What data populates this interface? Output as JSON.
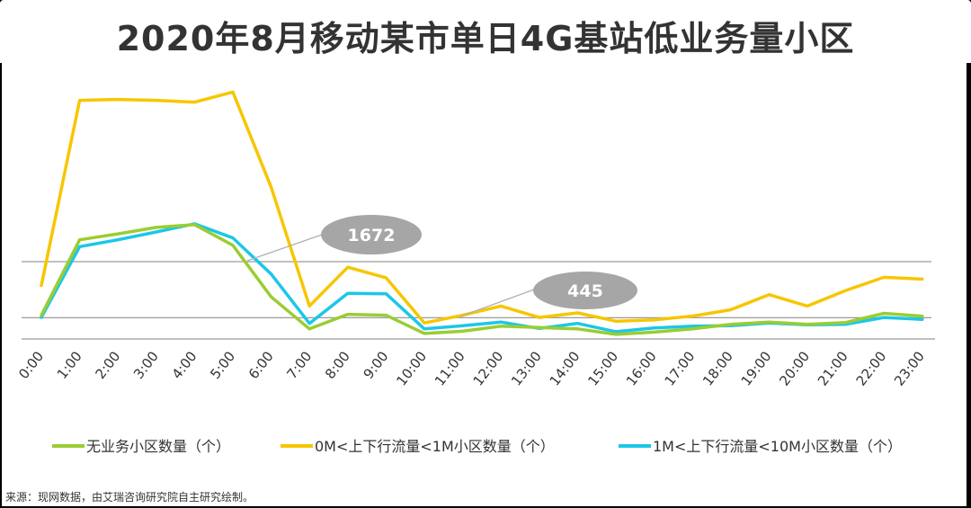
{
  "header": {
    "title": "2020年8月移动某市单日4G基站低业务量小区"
  },
  "footer": {
    "source": "来源：现网数据，由艾瑞咨询研究院自主研究绘制。"
  },
  "colors": {
    "green": "#9ACD32",
    "yellow": "#F7C600",
    "cyan": "#1CC7E8",
    "callout": "#A6A6A6"
  },
  "chart_data": {
    "type": "line",
    "x": [
      "0:00",
      "1:00",
      "2:00",
      "3:00",
      "4:00",
      "5:00",
      "6:00",
      "7:00",
      "8:00",
      "9:00",
      "10:00",
      "11:00",
      "12:00",
      "13:00",
      "14:00",
      "15:00",
      "16:00",
      "17:00",
      "18:00",
      "19:00",
      "20:00",
      "21:00",
      "22:00",
      "23:00"
    ],
    "series": [
      {
        "name": "无业务小区数量（个）",
        "color": "#9ACD32",
        "values": [
          500,
          2150,
          2280,
          2420,
          2480,
          2030,
          900,
          200,
          520,
          500,
          100,
          150,
          260,
          230,
          200,
          80,
          130,
          200,
          300,
          350,
          300,
          340,
          540,
          480
        ]
      },
      {
        "name": "0M<上下行流量<1M小区数量（个）",
        "color": "#F7C600",
        "values": [
          1150,
          5200,
          5220,
          5200,
          5160,
          5380,
          3300,
          700,
          1550,
          1320,
          330,
          500,
          700,
          450,
          550,
          370,
          400,
          480,
          620,
          950,
          700,
          1040,
          1330,
          1290
        ]
      },
      {
        "name": "1M<上下行流量<10M小区数量（个）",
        "color": "#1CC7E8",
        "values": [
          450,
          2000,
          2150,
          2320,
          2500,
          2190,
          1400,
          320,
          980,
          970,
          200,
          270,
          350,
          210,
          320,
          140,
          220,
          260,
          270,
          330,
          290,
          300,
          450,
          410
        ]
      }
    ],
    "reference_lines": [
      1672,
      445
    ],
    "annotations": [
      "1672",
      "445"
    ],
    "ylim": [
      0,
      5900
    ],
    "grid": false,
    "legend": "bottom",
    "xlabel": "",
    "ylabel": ""
  }
}
